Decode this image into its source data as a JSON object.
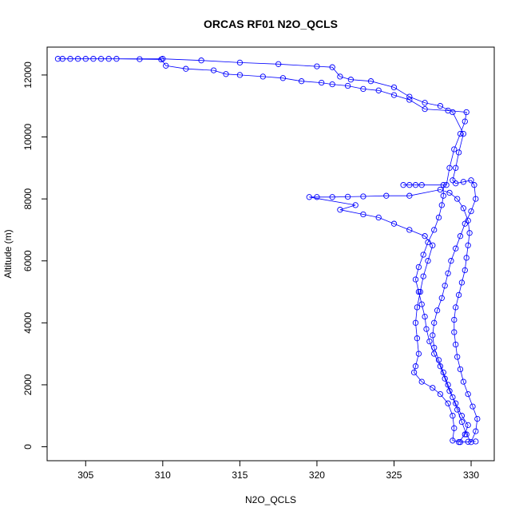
{
  "chart_data": {
    "type": "line",
    "title": "ORCAS RF01 N2O_QCLS",
    "xlabel": "N2O_QCLS",
    "ylabel": "Altitude (m)",
    "xlim": [
      302.5,
      331.5
    ],
    "ylim": [
      -450,
      12900
    ],
    "xticks": [
      305,
      310,
      315,
      320,
      325,
      330
    ],
    "yticks": [
      0,
      2000,
      4000,
      6000,
      8000,
      10000,
      12000
    ],
    "grid": false,
    "legend": "none",
    "marker": "open-circle",
    "color": "#0000ff",
    "series": [
      {
        "points": [
          [
            329.2,
            150
          ],
          [
            329.6,
            400
          ],
          [
            329.8,
            700
          ],
          [
            329.4,
            1000
          ],
          [
            329.0,
            1400
          ],
          [
            328.6,
            1800
          ],
          [
            328.3,
            2200
          ],
          [
            328.0,
            2600
          ],
          [
            327.6,
            3000
          ],
          [
            327.3,
            3400
          ],
          [
            327.1,
            3800
          ],
          [
            327.0,
            4200
          ],
          [
            326.8,
            4600
          ],
          [
            326.6,
            5000
          ],
          [
            326.4,
            5400
          ],
          [
            326.6,
            5800
          ],
          [
            326.9,
            6200
          ],
          [
            327.2,
            6600
          ],
          [
            327.6,
            7000
          ],
          [
            327.9,
            7400
          ],
          [
            328.1,
            7800
          ],
          [
            328.2,
            8100
          ],
          [
            328.2,
            8450
          ],
          [
            326.8,
            8450
          ],
          [
            326.4,
            8450
          ],
          [
            326.0,
            8450
          ],
          [
            325.6,
            8450
          ],
          [
            328.4,
            8450
          ],
          [
            328.6,
            9000
          ],
          [
            328.9,
            9600
          ],
          [
            329.3,
            10100
          ],
          [
            329.6,
            10500
          ],
          [
            329.7,
            10800
          ],
          [
            328.5,
            10850
          ],
          [
            327.0,
            10900
          ],
          [
            326.0,
            11200
          ],
          [
            325.0,
            11350
          ],
          [
            324.0,
            11500
          ],
          [
            323.0,
            11550
          ],
          [
            322.0,
            11650
          ],
          [
            321.0,
            11700
          ],
          [
            320.3,
            11750
          ],
          [
            319.0,
            11800
          ],
          [
            317.8,
            11900
          ],
          [
            316.5,
            11950
          ],
          [
            315.0,
            12000
          ],
          [
            314.1,
            12030
          ],
          [
            313.3,
            12150
          ],
          [
            311.5,
            12200
          ],
          [
            310.2,
            12300
          ],
          [
            309.9,
            12500
          ],
          [
            308.5,
            12510
          ],
          [
            307.0,
            12520
          ],
          [
            306.5,
            12520
          ],
          [
            306.0,
            12520
          ],
          [
            305.5,
            12520
          ],
          [
            305.0,
            12520
          ],
          [
            304.5,
            12520
          ],
          [
            304.0,
            12520
          ],
          [
            303.5,
            12520
          ],
          [
            303.2,
            12520
          ],
          [
            310.0,
            12520
          ],
          [
            312.5,
            12470
          ],
          [
            315.0,
            12400
          ],
          [
            317.5,
            12350
          ],
          [
            320.0,
            12280
          ],
          [
            321.0,
            12250
          ],
          [
            321.5,
            11950
          ],
          [
            322.2,
            11850
          ],
          [
            323.5,
            11800
          ],
          [
            325.0,
            11600
          ],
          [
            326.0,
            11300
          ],
          [
            327.0,
            11100
          ],
          [
            328.0,
            11000
          ],
          [
            328.8,
            10800
          ],
          [
            329.5,
            10100
          ],
          [
            329.2,
            9500
          ],
          [
            329.0,
            9000
          ],
          [
            328.8,
            8600
          ],
          [
            329.0,
            8500
          ],
          [
            329.5,
            8550
          ],
          [
            330.0,
            8600
          ],
          [
            330.2,
            8450
          ],
          [
            330.3,
            8000
          ],
          [
            330.0,
            7600
          ],
          [
            329.6,
            7200
          ],
          [
            329.3,
            6800
          ],
          [
            329.0,
            6400
          ],
          [
            328.7,
            6000
          ],
          [
            328.5,
            5600
          ],
          [
            328.3,
            5200
          ],
          [
            328.1,
            4800
          ],
          [
            327.8,
            4400
          ],
          [
            327.6,
            4000
          ],
          [
            327.5,
            3600
          ],
          [
            327.6,
            3200
          ],
          [
            327.9,
            2800
          ],
          [
            328.2,
            2400
          ],
          [
            328.5,
            2000
          ],
          [
            328.8,
            1600
          ],
          [
            329.1,
            1200
          ],
          [
            329.4,
            800
          ],
          [
            329.7,
            400
          ],
          [
            330.0,
            150
          ],
          [
            330.3,
            500
          ],
          [
            330.4,
            900
          ],
          [
            330.1,
            1300
          ],
          [
            329.8,
            1700
          ],
          [
            329.5,
            2100
          ],
          [
            329.3,
            2500
          ],
          [
            329.1,
            2900
          ],
          [
            329.0,
            3300
          ],
          [
            328.9,
            3700
          ],
          [
            328.9,
            4100
          ],
          [
            329.0,
            4500
          ],
          [
            329.2,
            4900
          ],
          [
            329.4,
            5300
          ],
          [
            329.6,
            5700
          ],
          [
            329.7,
            6100
          ],
          [
            329.8,
            6500
          ],
          [
            329.9,
            6900
          ],
          [
            329.8,
            7300
          ],
          [
            329.5,
            7700
          ],
          [
            329.1,
            8000
          ],
          [
            328.6,
            8200
          ],
          [
            328.0,
            8300
          ],
          [
            326.0,
            8100
          ],
          [
            324.5,
            8100
          ],
          [
            323.0,
            8080
          ],
          [
            322.0,
            8070
          ],
          [
            321.0,
            8060
          ],
          [
            320.0,
            8060
          ],
          [
            319.5,
            8060
          ],
          [
            322.5,
            7800
          ],
          [
            321.5,
            7650
          ],
          [
            323.0,
            7500
          ],
          [
            324.0,
            7400
          ],
          [
            325.0,
            7200
          ],
          [
            326.0,
            7000
          ],
          [
            327.0,
            6800
          ],
          [
            327.5,
            6500
          ],
          [
            327.2,
            6000
          ],
          [
            326.9,
            5500
          ],
          [
            326.7,
            5000
          ],
          [
            326.5,
            4500
          ],
          [
            326.4,
            4000
          ],
          [
            326.5,
            3500
          ],
          [
            326.6,
            3000
          ],
          [
            326.4,
            2600
          ],
          [
            326.3,
            2400
          ],
          [
            326.8,
            2100
          ],
          [
            327.5,
            1900
          ],
          [
            328.0,
            1700
          ],
          [
            328.5,
            1400
          ],
          [
            328.8,
            1000
          ],
          [
            328.9,
            600
          ],
          [
            328.8,
            200
          ],
          [
            329.3,
            150
          ],
          [
            329.8,
            160
          ],
          [
            330.3,
            170
          ]
        ]
      }
    ]
  }
}
